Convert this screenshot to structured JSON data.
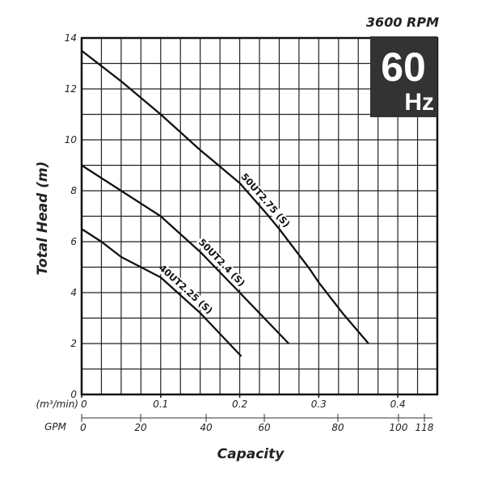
{
  "header": {
    "rpm": "3600 RPM",
    "freq_value": "60",
    "freq_unit": "Hz",
    "badge_color": "#333333"
  },
  "chart_data": {
    "type": "line",
    "title": "",
    "xlabel": "Capacity",
    "ylabel": "Total Head (m)",
    "x_unit_label": "(m³/min)",
    "x2_unit_label": "GPM",
    "xlim": [
      0,
      0.45
    ],
    "ylim": [
      0,
      14
    ],
    "grid": true,
    "x_ticks": [
      "0",
      "0.1",
      "0.2",
      "0.3",
      "0.4"
    ],
    "x_tick_values": [
      0,
      0.1,
      0.2,
      0.3,
      0.4
    ],
    "x2_ticks": [
      "0",
      "20",
      "40",
      "60",
      "80",
      "100",
      "118"
    ],
    "x2_tick_values": [
      0,
      20,
      40,
      60,
      80,
      100,
      118
    ],
    "y_ticks": [
      "0",
      "2",
      "4",
      "6",
      "8",
      "10",
      "12",
      "14"
    ],
    "y_tick_values": [
      0,
      2,
      4,
      6,
      8,
      10,
      12,
      14
    ],
    "series": [
      {
        "name": "50UT2.75 (S)",
        "x": [
          0,
          0.05,
          0.1,
          0.15,
          0.2,
          0.234,
          0.25,
          0.288,
          0.3,
          0.33,
          0.363
        ],
        "y": [
          13.5,
          12.3,
          11.0,
          9.6,
          8.3,
          7.1,
          6.5,
          4.95,
          4.4,
          3.2,
          2.0
        ]
      },
      {
        "name": "50UT2.4 (S)",
        "x": [
          0,
          0.05,
          0.1,
          0.15,
          0.2,
          0.262
        ],
        "y": [
          9.0,
          8.0,
          7.0,
          5.6,
          4.0,
          2.0
        ]
      },
      {
        "name": "40UT2.25 (S)",
        "x": [
          0,
          0.025,
          0.05,
          0.1,
          0.15,
          0.202
        ],
        "y": [
          6.5,
          6.0,
          5.4,
          4.6,
          3.2,
          1.5
        ]
      }
    ]
  }
}
